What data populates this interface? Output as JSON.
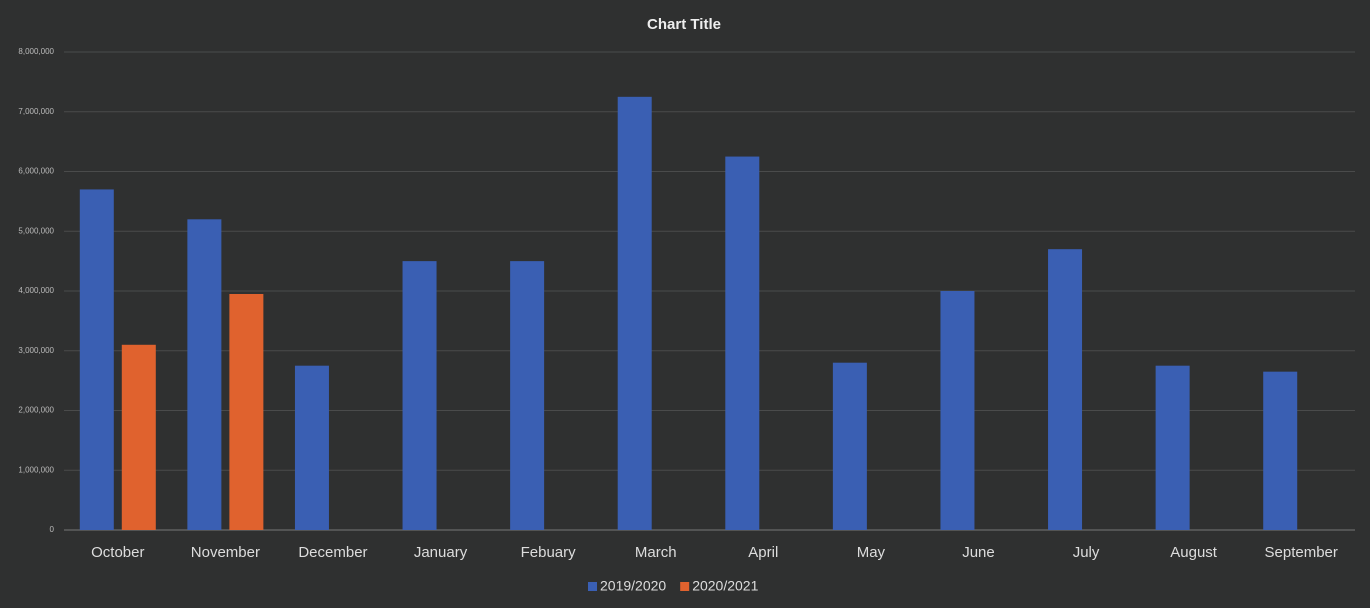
{
  "chart_data": {
    "type": "bar",
    "title": "Chart Title",
    "categories": [
      "October",
      "November",
      "December",
      "January",
      "Febuary",
      "March",
      "April",
      "May",
      "June",
      "July",
      "August",
      "September"
    ],
    "series": [
      {
        "name": "2019/2020",
        "color": "#3a5fb3",
        "values": [
          5700000,
          5200000,
          2750000,
          4500000,
          4500000,
          7250000,
          6250000,
          2800000,
          4000000,
          4700000,
          2750000,
          2650000
        ]
      },
      {
        "name": "2020/2021",
        "color": "#e0622e",
        "values": [
          3100000,
          3950000,
          null,
          null,
          null,
          null,
          null,
          null,
          null,
          null,
          null,
          null
        ]
      }
    ],
    "ylim": [
      0,
      8000000
    ],
    "yticks": [
      0,
      {
        "value": 1000000,
        "label": "1,000,000"
      },
      {
        "value": 2000000,
        "label": "2,000,000"
      },
      {
        "value": 3000000,
        "label": "3,000,000"
      },
      {
        "value": 4000000,
        "label": "4,000,000"
      },
      {
        "value": 5000000,
        "label": "5,000,000"
      },
      {
        "value": 6000000,
        "label": "6,000,000"
      },
      {
        "value": 7000000,
        "label": "7,000,000"
      },
      {
        "value": 8000000,
        "label": "8,000,000"
      }
    ],
    "grid": true,
    "legend": "bottom"
  }
}
